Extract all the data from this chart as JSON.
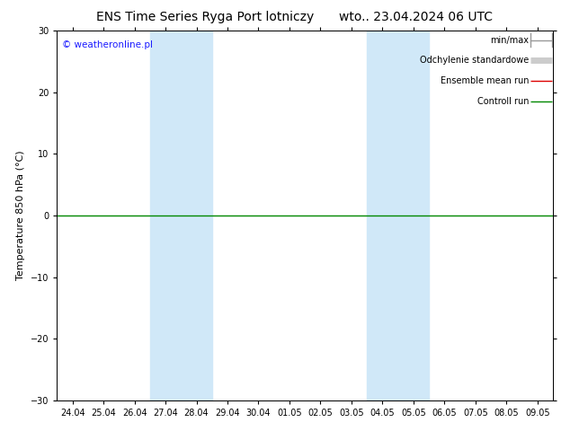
{
  "title_left": "ENS Time Series Ryga Port lotniczy",
  "title_right": "wto.. 23.04.2024 06 UTC",
  "ylabel": "Temperature 850 hPa (°C)",
  "ylim": [
    -30,
    30
  ],
  "yticks": [
    -30,
    -20,
    -10,
    0,
    10,
    20,
    30
  ],
  "xlabel_dates": [
    "24.04",
    "25.04",
    "26.04",
    "27.04",
    "28.04",
    "29.04",
    "30.04",
    "01.05",
    "02.05",
    "03.05",
    "04.05",
    "05.05",
    "06.05",
    "07.05",
    "08.05",
    "09.05"
  ],
  "shaded_regions": [
    {
      "xstart": 3,
      "xend": 5,
      "color": "#d0e8f8"
    },
    {
      "xstart": 10,
      "xend": 12,
      "color": "#d0e8f8"
    }
  ],
  "legend_items": [
    {
      "label": "min/max",
      "color": "#999999",
      "lw": 1.0
    },
    {
      "label": "Odchylenie standardowe",
      "color": "#cccccc",
      "lw": 5
    },
    {
      "label": "Ensemble mean run",
      "color": "#dd0000",
      "lw": 1.0
    },
    {
      "label": "Controll run",
      "color": "#008800",
      "lw": 1.0
    }
  ],
  "watermark": "© weatheronline.pl",
  "watermark_color": "#1a1aff",
  "zero_line_color": "#008800",
  "background_color": "#ffffff",
  "title_fontsize": 10,
  "tick_fontsize": 7,
  "label_fontsize": 8,
  "legend_fontsize": 7
}
